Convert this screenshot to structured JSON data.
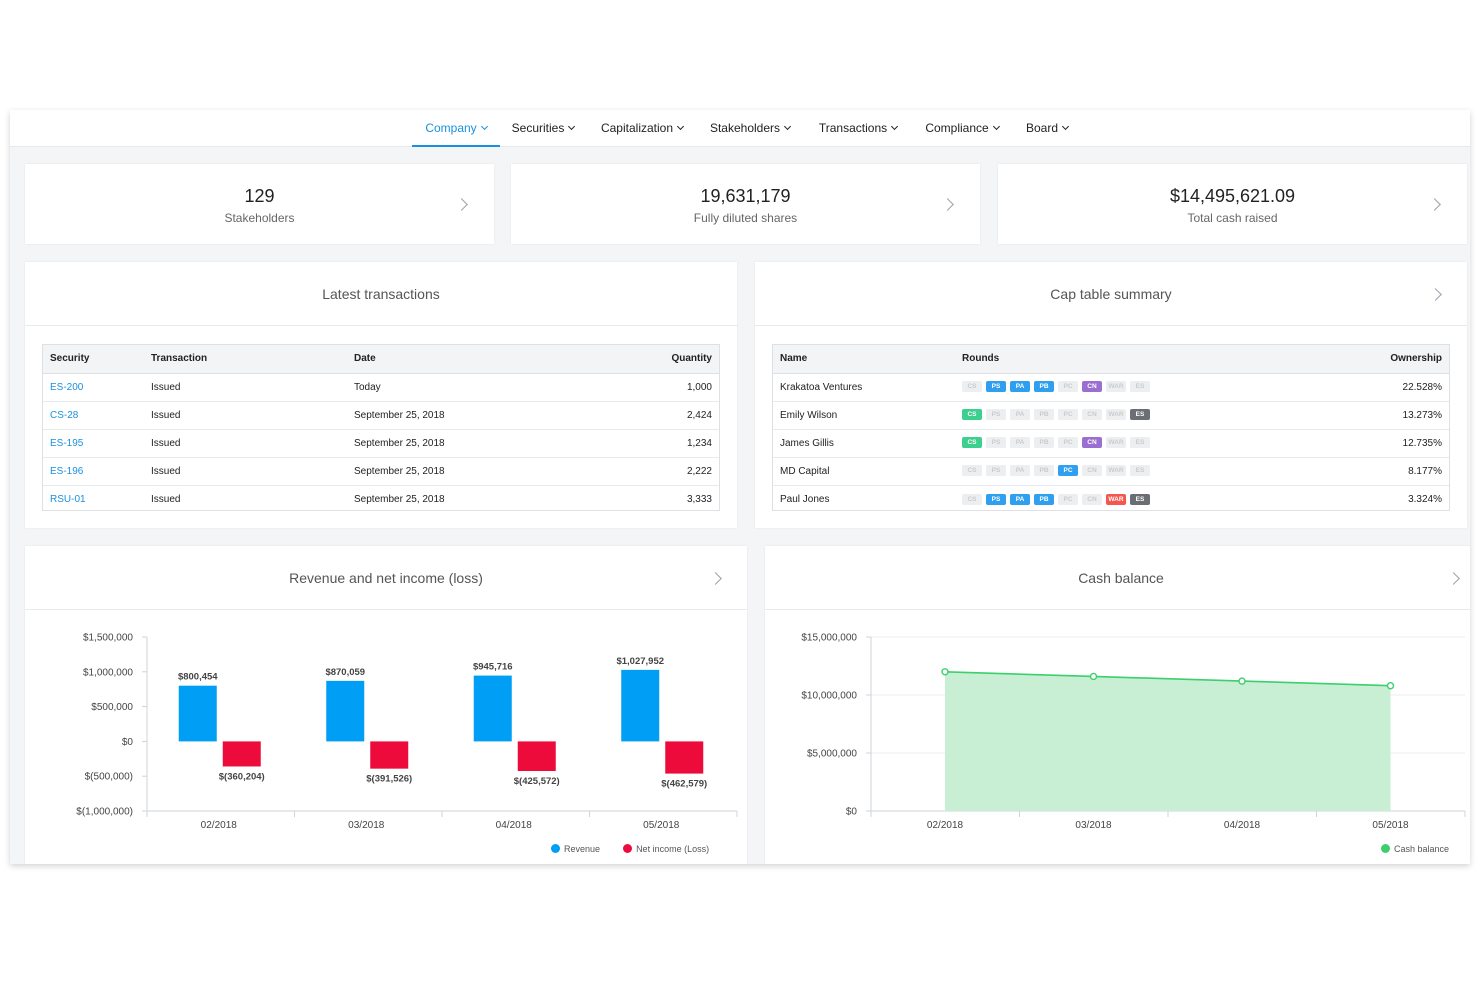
{
  "nav": {
    "items": [
      {
        "label": "Company",
        "active": true
      },
      {
        "label": "Securities"
      },
      {
        "label": "Capitalization"
      },
      {
        "label": "Stakeholders"
      },
      {
        "label": "Transactions"
      },
      {
        "label": "Compliance"
      },
      {
        "label": "Board"
      }
    ]
  },
  "stats": [
    {
      "value": "129",
      "label": "Stakeholders"
    },
    {
      "value": "19,631,179",
      "label": "Fully diluted shares"
    },
    {
      "value": "$14,495,621.09",
      "label": "Total cash raised"
    }
  ],
  "latest": {
    "title": "Latest transactions",
    "headers": [
      "Security",
      "Transaction",
      "Date",
      "Quantity"
    ],
    "rows": [
      [
        "ES-200",
        "Issued",
        "Today",
        "1,000"
      ],
      [
        "CS-28",
        "Issued",
        "September 25, 2018",
        "2,424"
      ],
      [
        "ES-195",
        "Issued",
        "September 25, 2018",
        "1,234"
      ],
      [
        "ES-196",
        "Issued",
        "September 25, 2018",
        "2,222"
      ],
      [
        "RSU-01",
        "Issued",
        "September 25, 2018",
        "3,333"
      ]
    ]
  },
  "captable": {
    "title": "Cap table summary",
    "headers": [
      "Name",
      "Rounds",
      "Ownership"
    ],
    "round_codes": [
      "CS",
      "PS",
      "PA",
      "PB",
      "PC",
      "CN",
      "WAR",
      "ES"
    ],
    "round_colors": {
      "CS": "#3ccf8e",
      "PS": "#2f9ff0",
      "PA": "#2f9ff0",
      "PB": "#2f9ff0",
      "PC": "#2f9ff0",
      "CN": "#9b6fd1",
      "WAR": "#f4574e",
      "ES": "#6b6f75"
    },
    "rows": [
      {
        "name": "Krakatoa Ventures",
        "active": [
          "PS",
          "PA",
          "PB",
          "CN"
        ],
        "ownership": "22.528%"
      },
      {
        "name": "Emily Wilson",
        "active": [
          "CS",
          "ES"
        ],
        "ownership": "13.273%"
      },
      {
        "name": "James Gillis",
        "active": [
          "CS",
          "CN"
        ],
        "ownership": "12.735%"
      },
      {
        "name": "MD Capital",
        "active": [
          "PC"
        ],
        "ownership": "8.177%"
      },
      {
        "name": "Paul Jones",
        "active": [
          "PS",
          "PA",
          "PB",
          "WAR",
          "ES"
        ],
        "ownership": "3.324%"
      }
    ]
  },
  "revenue_panel": {
    "title": "Revenue and net income (loss)"
  },
  "cash_panel": {
    "title": "Cash balance"
  },
  "chart_data": [
    {
      "type": "bar",
      "categories": [
        "02/2018",
        "03/2018",
        "04/2018",
        "05/2018"
      ],
      "series": [
        {
          "name": "Revenue",
          "values": [
            800454,
            870059,
            945716,
            1027952
          ],
          "labels": [
            "$800,454",
            "$870,059",
            "$945,716",
            "$1,027,952"
          ],
          "color": "#009ef5"
        },
        {
          "name": "Net income (Loss)",
          "values": [
            -360204,
            -391526,
            -425572,
            -462579
          ],
          "labels": [
            "$(360,204)",
            "$(391,526)",
            "$(425,572)",
            "$(462,579)"
          ],
          "color": "#ec0b3a"
        }
      ],
      "ylim": [
        -1000000,
        1500000
      ],
      "yticks": [
        1500000,
        1000000,
        500000,
        0,
        -500000,
        -1000000
      ],
      "ytick_labels": [
        "$1,500,000",
        "$1,000,000",
        "$500,000",
        "$0",
        "$(500,000)",
        "$(1,000,000)"
      ],
      "legend": "bottom-right",
      "grid": false
    },
    {
      "type": "area",
      "x": [
        "02/2018",
        "03/2018",
        "04/2018",
        "05/2018"
      ],
      "series": [
        {
          "name": "Cash balance",
          "values": [
            12000000,
            11600000,
            11200000,
            10800000
          ],
          "color": "#3ccf6e",
          "fill": "#c8efd3"
        }
      ],
      "ylim": [
        0,
        15000000
      ],
      "yticks": [
        15000000,
        10000000,
        5000000,
        0
      ],
      "ytick_labels": [
        "$15,000,000",
        "$10,000,000",
        "$5,000,000",
        "$0"
      ],
      "legend": "bottom-right",
      "grid": true
    }
  ]
}
